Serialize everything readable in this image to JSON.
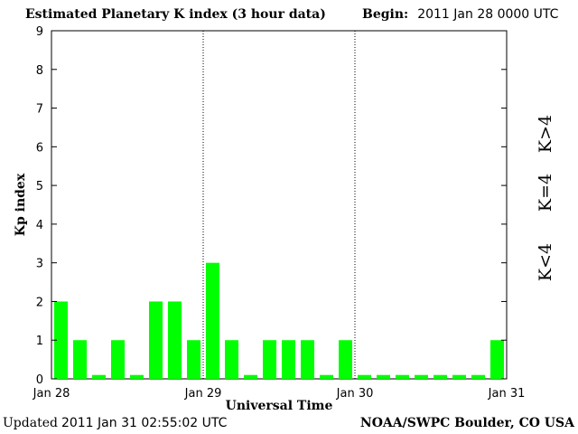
{
  "header": {
    "title": "Estimated Planetary K index (3 hour data)",
    "begin_label": "Begin:",
    "begin_value": "2011 Jan 28 0000 UTC"
  },
  "footer": {
    "updated_label": "Updated",
    "updated_value": "2011 Jan 31 02:55:02 UTC",
    "credit": "NOAA/SWPC Boulder, CO USA"
  },
  "chart_data": {
    "type": "bar",
    "title": "Estimated Planetary K index (3 hour data)",
    "xlabel": "Universal Time",
    "ylabel": "Kp index",
    "ylim": [
      0,
      9
    ],
    "yticks": [
      "0",
      "1",
      "2",
      "3",
      "4",
      "5",
      "6",
      "7",
      "8",
      "9"
    ],
    "xticks": [
      "Jan 28",
      "Jan 29",
      "Jan 30",
      "Jan 31"
    ],
    "day_dividers": [
      "Jan 29",
      "Jan 30"
    ],
    "bar_color": "#00ff00",
    "grid": false,
    "values": [
      2,
      1,
      0.1,
      1,
      0.1,
      2,
      2,
      1,
      3,
      1,
      0.1,
      1,
      1,
      1,
      0.1,
      1,
      0.1,
      0.1,
      0.1,
      0.1,
      0.1,
      0.1,
      0.1,
      1
    ],
    "legend": [
      {
        "label": "K<4",
        "color": "#22dd22"
      },
      {
        "label": "K=4",
        "color": "#ffcc00"
      },
      {
        "label": "K>4",
        "color": "#ff2200"
      }
    ]
  }
}
